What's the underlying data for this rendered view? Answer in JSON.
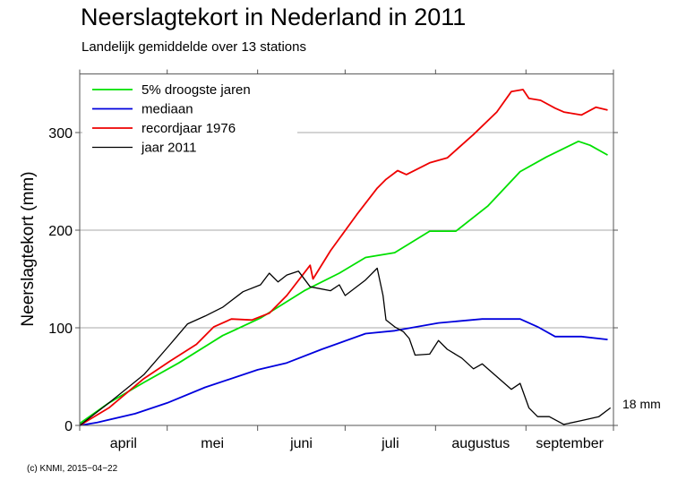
{
  "chart_data": {
    "type": "line",
    "title": "Neerslagtekort in Nederland in 2011",
    "subtitle": "Landelijk gemiddelde over 13 stations",
    "ylabel": "Neerslagtekort (mm)",
    "xlabel": "",
    "xlim": [
      "2011-04-01",
      "2011-10-01"
    ],
    "ylim": [
      0,
      360
    ],
    "yticks": [
      0,
      100,
      200,
      300
    ],
    "month_labels": [
      "april",
      "mei",
      "juni",
      "juli",
      "augustus",
      "september"
    ],
    "month_starts": [
      "2011-04-01",
      "2011-05-01",
      "2011-06-01",
      "2011-07-01",
      "2011-08-01",
      "2011-09-01",
      "2011-10-01"
    ],
    "grid": "horizontal",
    "legend_position": "top-left",
    "end_annotation": "18 mm",
    "series": [
      {
        "name": "5% droogste jaren",
        "color": "#00e000",
        "x": [
          "04-01",
          "04-11",
          "04-23",
          "05-05",
          "05-20",
          "06-02",
          "06-17",
          "06-29",
          "07-08",
          "07-18",
          "07-24",
          "07-30",
          "08-08",
          "08-19",
          "08-30",
          "09-08",
          "09-19",
          "09-23",
          "09-29"
        ],
        "y": [
          2,
          23,
          44,
          64,
          92,
          110,
          138,
          156,
          172,
          177,
          188,
          199,
          199,
          225,
          260,
          275,
          291,
          287,
          277
        ]
      },
      {
        "name": "mediaan",
        "color": "#0000dd",
        "x": [
          "04-01",
          "04-07",
          "04-20",
          "05-01",
          "05-14",
          "06-01",
          "06-11",
          "06-23",
          "07-08",
          "07-18",
          "08-02",
          "08-17",
          "08-30",
          "09-05",
          "09-11",
          "09-20",
          "09-29"
        ],
        "y": [
          0,
          3,
          12,
          23,
          39,
          57,
          64,
          78,
          94,
          97,
          105,
          109,
          109,
          101,
          91,
          91,
          88
        ]
      },
      {
        "name": "recordjaar 1976",
        "color": "#ee0000",
        "x": [
          "04-01",
          "04-11",
          "04-23",
          "05-02",
          "05-11",
          "05-17",
          "05-23",
          "05-30",
          "06-05",
          "06-11",
          "06-19",
          "06-20",
          "06-26",
          "07-05",
          "07-12",
          "07-15",
          "07-19",
          "07-22",
          "07-30",
          "08-05",
          "08-14",
          "08-22",
          "08-27",
          "08-31",
          "09-02",
          "09-06",
          "09-11",
          "09-14",
          "09-20",
          "09-25",
          "09-29"
        ],
        "y": [
          0,
          18,
          48,
          66,
          83,
          101,
          109,
          108,
          115,
          133,
          164,
          150,
          179,
          216,
          243,
          252,
          261,
          257,
          269,
          274,
          298,
          321,
          342,
          344,
          335,
          333,
          325,
          321,
          318,
          326,
          323
        ]
      },
      {
        "name": "jaar 2011",
        "color": "#000000",
        "x": [
          "04-01",
          "04-11",
          "04-23",
          "05-02",
          "05-08",
          "05-14",
          "05-20",
          "05-27",
          "06-02",
          "06-05",
          "06-08",
          "06-11",
          "06-15",
          "06-19",
          "06-26",
          "06-29",
          "07-01",
          "07-08",
          "07-12",
          "07-14",
          "07-15",
          "07-18",
          "07-21",
          "07-23",
          "07-25",
          "07-30",
          "08-02",
          "08-05",
          "08-10",
          "08-14",
          "08-17",
          "08-22",
          "08-27",
          "08-30",
          "09-02",
          "09-05",
          "09-09",
          "09-14",
          "09-20",
          "09-26",
          "09-30"
        ],
        "y": [
          0,
          23,
          52,
          83,
          104,
          112,
          121,
          137,
          144,
          156,
          147,
          154,
          158,
          142,
          138,
          144,
          133,
          149,
          161,
          133,
          108,
          101,
          96,
          89,
          72,
          73,
          87,
          78,
          69,
          58,
          63,
          50,
          37,
          43,
          18,
          9,
          9,
          1,
          5,
          9,
          18
        ]
      }
    ]
  },
  "footer": {
    "copyright": "(c) KNMI, 2015−04−22"
  }
}
